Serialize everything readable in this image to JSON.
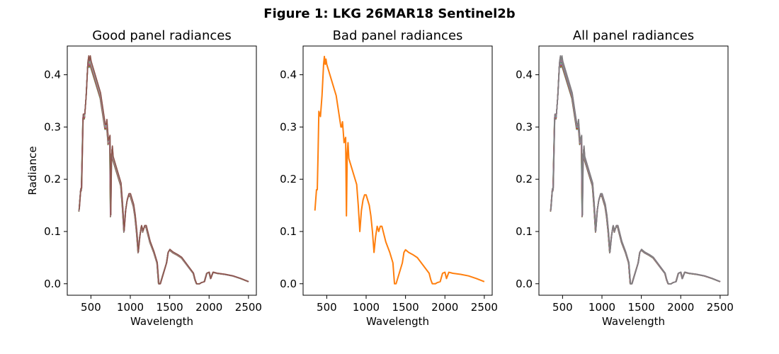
{
  "figure": {
    "title": "Figure 1: LKG 26MAR18  Sentinel2b"
  },
  "chart_data": [
    {
      "type": "line",
      "title": "Good panel radiances",
      "xlabel": "Wavelength",
      "ylabel": "Radiance",
      "xlim": [
        200,
        2600
      ],
      "ylim": [
        -0.022,
        0.455
      ],
      "xticks": [
        500,
        1000,
        1500,
        2000,
        2500
      ],
      "yticks": [
        0.0,
        0.1,
        0.2,
        0.3,
        0.4
      ],
      "series_count": 12,
      "series_colors": [
        "#1f77b4",
        "#ff7f0e",
        "#2ca02c",
        "#d62728",
        "#9467bd",
        "#8c564b",
        "#e377c2",
        "#7f7f7f",
        "#bcbd22",
        "#17becf",
        "#e377c2",
        "#8c564b"
      ],
      "x": [
        350,
        370,
        380,
        390,
        400,
        420,
        440,
        460,
        470,
        480,
        490,
        500,
        520,
        540,
        560,
        580,
        600,
        620,
        640,
        660,
        680,
        690,
        700,
        710,
        720,
        740,
        750,
        760,
        770,
        780,
        800,
        820,
        840,
        860,
        880,
        900,
        920,
        940,
        960,
        980,
        1000,
        1020,
        1040,
        1060,
        1080,
        1100,
        1120,
        1140,
        1160,
        1180,
        1200,
        1250,
        1300,
        1340,
        1360,
        1380,
        1400,
        1420,
        1440,
        1460,
        1480,
        1500,
        1540,
        1600,
        1650,
        1700,
        1750,
        1800,
        1820,
        1840,
        1860,
        1880,
        1900,
        1940,
        1970,
        2000,
        2020,
        2050,
        2100,
        2200,
        2300,
        2400,
        2500
      ],
      "y": [
        0.14,
        0.18,
        0.18,
        0.25,
        0.32,
        0.32,
        0.36,
        0.42,
        0.43,
        0.42,
        0.43,
        0.42,
        0.41,
        0.4,
        0.39,
        0.38,
        0.37,
        0.36,
        0.34,
        0.32,
        0.3,
        0.3,
        0.31,
        0.29,
        0.27,
        0.28,
        0.13,
        0.24,
        0.26,
        0.24,
        0.23,
        0.22,
        0.21,
        0.2,
        0.19,
        0.15,
        0.1,
        0.14,
        0.16,
        0.17,
        0.17,
        0.16,
        0.15,
        0.13,
        0.1,
        0.06,
        0.09,
        0.11,
        0.1,
        0.11,
        0.11,
        0.08,
        0.06,
        0.04,
        0.0,
        0.0,
        0.01,
        0.02,
        0.03,
        0.04,
        0.06,
        0.065,
        0.06,
        0.055,
        0.05,
        0.04,
        0.03,
        0.02,
        0.008,
        0.0,
        0.0,
        0.0,
        0.002,
        0.004,
        0.02,
        0.022,
        0.01,
        0.022,
        0.02,
        0.018,
        0.015,
        0.01,
        0.004
      ]
    },
    {
      "type": "line",
      "title": "Bad panel radiances",
      "xlabel": "Wavelength",
      "ylabel": "",
      "xlim": [
        200,
        2600
      ],
      "ylim": [
        -0.022,
        0.455
      ],
      "xticks": [
        500,
        1000,
        1500,
        2000,
        2500
      ],
      "yticks": [
        0.0,
        0.1,
        0.2,
        0.3,
        0.4
      ],
      "series_count": 1,
      "series_colors": [
        "#ff7f0e"
      ],
      "x": [
        350,
        370,
        380,
        390,
        400,
        420,
        440,
        460,
        470,
        480,
        490,
        500,
        520,
        540,
        560,
        580,
        600,
        620,
        640,
        660,
        680,
        690,
        700,
        710,
        720,
        740,
        750,
        760,
        770,
        780,
        800,
        820,
        840,
        860,
        880,
        900,
        920,
        940,
        960,
        980,
        1000,
        1020,
        1040,
        1060,
        1080,
        1100,
        1120,
        1140,
        1160,
        1180,
        1200,
        1250,
        1300,
        1340,
        1360,
        1380,
        1400,
        1420,
        1440,
        1460,
        1480,
        1500,
        1540,
        1600,
        1650,
        1700,
        1750,
        1800,
        1820,
        1840,
        1860,
        1880,
        1900,
        1940,
        1970,
        2000,
        2020,
        2050,
        2100,
        2200,
        2300,
        2400,
        2500
      ],
      "y": [
        0.14,
        0.18,
        0.18,
        0.25,
        0.33,
        0.32,
        0.36,
        0.42,
        0.435,
        0.42,
        0.43,
        0.42,
        0.41,
        0.4,
        0.39,
        0.38,
        0.37,
        0.36,
        0.34,
        0.32,
        0.3,
        0.3,
        0.31,
        0.29,
        0.27,
        0.28,
        0.13,
        0.25,
        0.27,
        0.24,
        0.23,
        0.22,
        0.21,
        0.2,
        0.19,
        0.15,
        0.1,
        0.14,
        0.16,
        0.17,
        0.17,
        0.16,
        0.15,
        0.13,
        0.1,
        0.06,
        0.09,
        0.11,
        0.1,
        0.11,
        0.11,
        0.08,
        0.06,
        0.04,
        0.0,
        0.0,
        0.01,
        0.02,
        0.03,
        0.04,
        0.06,
        0.065,
        0.06,
        0.055,
        0.05,
        0.04,
        0.03,
        0.02,
        0.008,
        0.0,
        0.0,
        0.0,
        0.002,
        0.004,
        0.02,
        0.022,
        0.01,
        0.022,
        0.02,
        0.018,
        0.015,
        0.01,
        0.004
      ]
    },
    {
      "type": "line",
      "title": "All panel radiances",
      "xlabel": "Wavelength",
      "ylabel": "",
      "xlim": [
        200,
        2600
      ],
      "ylim": [
        -0.022,
        0.455
      ],
      "xticks": [
        500,
        1000,
        1500,
        2000,
        2500
      ],
      "yticks": [
        0.0,
        0.1,
        0.2,
        0.3,
        0.4
      ],
      "series_count": 13,
      "series_colors": [
        "#1f77b4",
        "#ff7f0e",
        "#2ca02c",
        "#d62728",
        "#9467bd",
        "#8c564b",
        "#e377c2",
        "#17becf",
        "#bcbd22",
        "#1f77b4",
        "#8c564b",
        "#e377c2",
        "#7f7f7f"
      ],
      "x": [
        350,
        370,
        380,
        390,
        400,
        420,
        440,
        460,
        470,
        480,
        490,
        500,
        520,
        540,
        560,
        580,
        600,
        620,
        640,
        660,
        680,
        690,
        700,
        710,
        720,
        740,
        750,
        760,
        770,
        780,
        800,
        820,
        840,
        860,
        880,
        900,
        920,
        940,
        960,
        980,
        1000,
        1020,
        1040,
        1060,
        1080,
        1100,
        1120,
        1140,
        1160,
        1180,
        1200,
        1250,
        1300,
        1340,
        1360,
        1380,
        1400,
        1420,
        1440,
        1460,
        1480,
        1500,
        1540,
        1600,
        1650,
        1700,
        1750,
        1800,
        1820,
        1840,
        1860,
        1880,
        1900,
        1940,
        1970,
        2000,
        2020,
        2050,
        2100,
        2200,
        2300,
        2400,
        2500
      ],
      "y": [
        0.14,
        0.18,
        0.18,
        0.25,
        0.32,
        0.32,
        0.36,
        0.42,
        0.43,
        0.42,
        0.43,
        0.42,
        0.41,
        0.4,
        0.39,
        0.38,
        0.37,
        0.36,
        0.34,
        0.32,
        0.3,
        0.3,
        0.31,
        0.29,
        0.27,
        0.28,
        0.13,
        0.24,
        0.26,
        0.24,
        0.23,
        0.22,
        0.21,
        0.2,
        0.19,
        0.15,
        0.1,
        0.14,
        0.16,
        0.17,
        0.17,
        0.16,
        0.15,
        0.13,
        0.1,
        0.06,
        0.09,
        0.11,
        0.1,
        0.11,
        0.11,
        0.08,
        0.06,
        0.04,
        0.0,
        0.0,
        0.01,
        0.02,
        0.03,
        0.04,
        0.06,
        0.065,
        0.06,
        0.055,
        0.05,
        0.04,
        0.03,
        0.02,
        0.008,
        0.0,
        0.0,
        0.0,
        0.002,
        0.004,
        0.02,
        0.022,
        0.01,
        0.022,
        0.02,
        0.018,
        0.015,
        0.01,
        0.004
      ]
    }
  ]
}
